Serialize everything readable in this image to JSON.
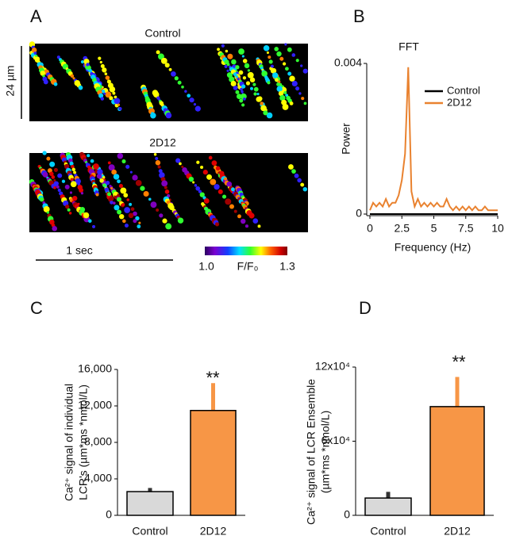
{
  "chart_data": [
    {
      "type": "linescan",
      "panel": "A",
      "titles": [
        "Control",
        "2D12"
      ],
      "y_scale_label": "24 µm",
      "x_scale_label": "1 sec",
      "colorbar_min_label": "1.0",
      "colorbar_label": "F/F₀",
      "colorbar_max_label": "1.3"
    },
    {
      "type": "line",
      "panel": "B",
      "title": "FFT",
      "x_label": "Frequency (Hz)",
      "y_label": "Power",
      "x": [
        0,
        0.25,
        0.5,
        0.75,
        1,
        1.25,
        1.5,
        1.75,
        2,
        2.25,
        2.5,
        2.75,
        3,
        3.25,
        3.5,
        3.75,
        4,
        4.25,
        4.5,
        4.75,
        5,
        5.25,
        5.5,
        5.75,
        6,
        6.25,
        6.5,
        6.75,
        7,
        7.25,
        7.5,
        7.75,
        8,
        8.25,
        8.5,
        8.75,
        9,
        9.25,
        9.5,
        9.75,
        10
      ],
      "series": [
        {
          "name": "Control",
          "color": "#000000",
          "values": [
            0,
            0,
            0,
            0,
            0,
            0,
            0,
            0,
            0,
            0,
            0,
            0,
            0,
            0,
            0,
            0,
            0,
            0,
            0,
            0,
            0,
            0,
            0,
            0,
            0,
            0,
            0,
            0,
            0,
            0,
            0,
            0,
            0,
            0,
            0,
            0,
            0,
            0,
            0,
            0,
            0
          ]
        },
        {
          "name": "2D12",
          "color": "#e9822f",
          "values": [
            0.0001,
            0.0003,
            0.0002,
            0.0003,
            0.0002,
            0.0004,
            0.0002,
            0.0003,
            0.0003,
            0.0005,
            0.0009,
            0.0016,
            0.0039,
            0.0006,
            0.0002,
            0.0004,
            0.0002,
            0.0003,
            0.0002,
            0.0003,
            0.0002,
            0.0003,
            0.0002,
            0.0002,
            0.0004,
            0.0002,
            0.0001,
            0.0002,
            0.0001,
            0.0002,
            0.0001,
            0.0002,
            0.0001,
            0.0002,
            0.0001,
            0.0001,
            0.0002,
            0.0001,
            0.0001,
            0.0001,
            0.0001
          ]
        }
      ],
      "xlim": [
        0,
        10
      ],
      "xticks": [
        0,
        2.5,
        5,
        7.5,
        10
      ],
      "ylim": [
        0,
        0.004
      ],
      "yticks": [
        0,
        0.004
      ],
      "legend": "upper right"
    },
    {
      "type": "bar",
      "panel": "C",
      "y_label": [
        "Ca²⁺ signal of  individual",
        "LCR's  (µm*ms *nmol/L)"
      ],
      "categories": [
        "Control",
        "2D12"
      ],
      "values": [
        2600,
        11500
      ],
      "errors": [
        400,
        3000
      ],
      "colors": [
        "#d9d9d9",
        "#f79646"
      ],
      "annotation": "**",
      "ylim": [
        0,
        16000
      ],
      "yticks": [
        0,
        {
          "value": 4000,
          "label": "4,000"
        },
        {
          "value": 8000,
          "label": "8,000"
        },
        {
          "value": 12000,
          "label": "12,000"
        },
        {
          "value": 16000,
          "label": "16,000"
        }
      ]
    },
    {
      "type": "bar",
      "panel": "D",
      "y_label": [
        "Ca²⁺ signal of LCR Ensemble",
        "(µm*ms *nmol/L)"
      ],
      "categories": [
        "Control",
        "2D12"
      ],
      "values": [
        14000,
        88000
      ],
      "errors": [
        5000,
        24000
      ],
      "colors": [
        "#d9d9d9",
        "#f79646"
      ],
      "annotation": "**",
      "ylim": [
        0,
        120000
      ],
      "yticks": [
        0,
        {
          "value": 60000,
          "label": "6x10⁴"
        },
        {
          "value": 120000,
          "label": "12x10⁴"
        }
      ]
    }
  ]
}
